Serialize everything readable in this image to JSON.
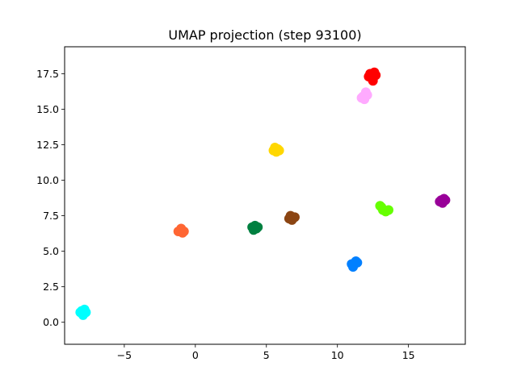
{
  "chart_data": {
    "type": "scatter",
    "title": "UMAP projection (step 93100)",
    "xlabel": "",
    "ylabel": "",
    "xlim": [
      -9.2,
      19.0
    ],
    "ylim": [
      -1.55,
      19.4
    ],
    "xticks": [
      -5,
      0,
      5,
      10,
      15
    ],
    "xtick_labels": [
      "−5",
      "0",
      "5",
      "10",
      "15"
    ],
    "yticks": [
      0.0,
      2.5,
      5.0,
      7.5,
      10.0,
      12.5,
      15.0,
      17.5
    ],
    "ytick_labels": [
      "0.0",
      "2.5",
      "5.0",
      "7.5",
      "10.0",
      "12.5",
      "15.0",
      "17.5"
    ],
    "grid": false,
    "legend": "none",
    "clusters": [
      {
        "color": "#ff0000",
        "points": [
          [
            12.3,
            17.5
          ],
          [
            12.6,
            17.6
          ],
          [
            12.4,
            17.2
          ],
          [
            12.5,
            17.0
          ],
          [
            12.7,
            17.4
          ],
          [
            12.2,
            17.3
          ]
        ]
      },
      {
        "color": "#ffaaff",
        "points": [
          [
            11.8,
            15.9
          ],
          [
            12.1,
            16.0
          ],
          [
            11.9,
            15.7
          ],
          [
            12.0,
            16.2
          ],
          [
            11.7,
            15.8
          ]
        ]
      },
      {
        "color": "#ffd700",
        "points": [
          [
            5.5,
            12.1
          ],
          [
            5.8,
            12.2
          ],
          [
            5.7,
            12.0
          ],
          [
            5.6,
            12.3
          ],
          [
            5.9,
            12.1
          ]
        ]
      },
      {
        "color": "#990099",
        "points": [
          [
            17.2,
            8.5
          ],
          [
            17.5,
            8.7
          ],
          [
            17.4,
            8.4
          ],
          [
            17.6,
            8.6
          ],
          [
            17.3,
            8.6
          ]
        ]
      },
      {
        "color": "#66ff00",
        "points": [
          [
            13.1,
            8.1
          ],
          [
            13.4,
            7.8
          ],
          [
            13.2,
            7.9
          ],
          [
            13.6,
            7.9
          ],
          [
            13.0,
            8.2
          ]
        ]
      },
      {
        "color": "#8b4513",
        "points": [
          [
            6.6,
            7.3
          ],
          [
            6.9,
            7.4
          ],
          [
            6.8,
            7.2
          ],
          [
            7.0,
            7.4
          ],
          [
            6.7,
            7.5
          ]
        ]
      },
      {
        "color": "#008040",
        "points": [
          [
            4.0,
            6.7
          ],
          [
            4.3,
            6.6
          ],
          [
            4.2,
            6.8
          ],
          [
            4.1,
            6.5
          ],
          [
            4.4,
            6.7
          ]
        ]
      },
      {
        "color": "#ff6633",
        "points": [
          [
            -1.1,
            6.4
          ],
          [
            -0.8,
            6.4
          ],
          [
            -1.0,
            6.6
          ],
          [
            -0.9,
            6.3
          ],
          [
            -1.2,
            6.4
          ]
        ]
      },
      {
        "color": "#0080ff",
        "points": [
          [
            11.0,
            4.1
          ],
          [
            11.3,
            4.3
          ],
          [
            11.1,
            3.9
          ],
          [
            11.4,
            4.2
          ],
          [
            11.2,
            4.1
          ]
        ]
      },
      {
        "color": "#00ffff",
        "points": [
          [
            -8.0,
            0.8
          ],
          [
            -7.7,
            0.7
          ],
          [
            -7.9,
            0.5
          ],
          [
            -7.8,
            0.9
          ],
          [
            -8.1,
            0.7
          ]
        ]
      }
    ]
  }
}
